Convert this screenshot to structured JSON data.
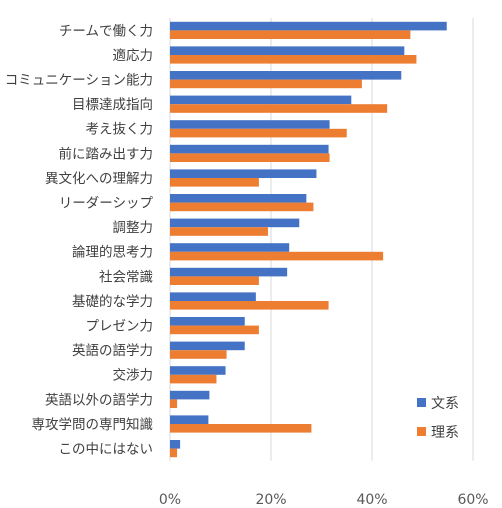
{
  "chart_data": {
    "type": "bar",
    "orientation": "horizontal",
    "categories": [
      "チームで働く力",
      "適応力",
      "コミュニケーション能力",
      "目標達成指向",
      "考え抜く力",
      "前に踏み出す力",
      "異文化への理解力",
      "リーダーシップ",
      "調整力",
      "論理的思考力",
      "社会常識",
      "基礎的な学力",
      "プレゼン力",
      "英語の語学力",
      "交渉力",
      "英語以外の語学力",
      "専攻学問の専門知識",
      "この中にはない"
    ],
    "series": [
      {
        "name": "文系",
        "color": "#4472C4",
        "values": [
          54.8,
          46.4,
          45.8,
          35.9,
          31.6,
          31.4,
          29.0,
          27.0,
          25.6,
          23.6,
          23.2,
          17.0,
          14.8,
          14.8,
          11.0,
          7.8,
          7.6,
          2.0
        ]
      },
      {
        "name": "理系",
        "color": "#ED7D31",
        "values": [
          47.6,
          48.8,
          38.0,
          43.0,
          35.0,
          31.6,
          17.6,
          28.4,
          19.4,
          42.2,
          17.6,
          31.4,
          17.6,
          11.2,
          9.2,
          1.4,
          28.0,
          1.4
        ]
      }
    ],
    "x_axis": {
      "min": 0,
      "max": 60,
      "ticks": [
        "0%",
        "20%",
        "40%",
        "60%"
      ],
      "tick_values": [
        0,
        20,
        40,
        60
      ]
    },
    "grid": true,
    "legend": "right"
  }
}
